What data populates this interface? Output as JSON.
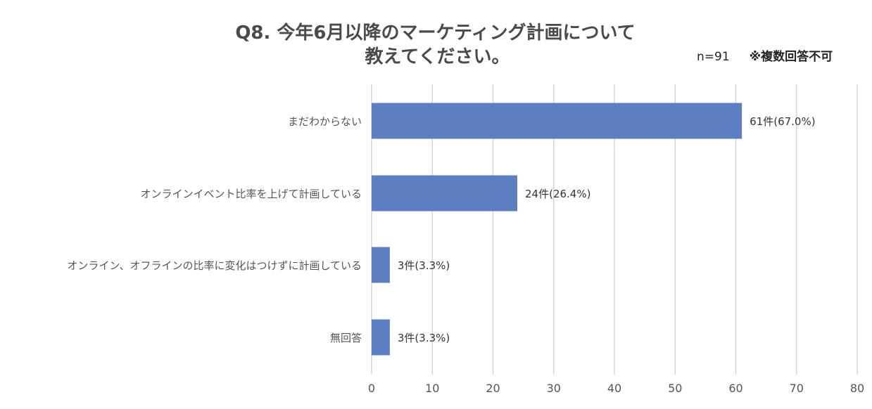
{
  "chart_data": {
    "type": "bar",
    "orientation": "horizontal",
    "title": "Q8. 今年6月以降のマーケティング計画について教えてください。",
    "title_lines": [
      "Q8. 今年6月以降のマーケティング計画について",
      "教えてください。"
    ],
    "sample_size": "n=91",
    "note": "※複数回答不可",
    "categories": [
      "まだわからない",
      "オンラインイベント比率を上げて計画している",
      "オンライン、オフラインの比率に変化はつけずに計画している",
      "無回答"
    ],
    "values": [
      61,
      24,
      3,
      3
    ],
    "data_labels": [
      "61件(67.0%)",
      "24件(26.4%)",
      "3件(3.3%)",
      "3件(3.3%)"
    ],
    "xlim": [
      0,
      80
    ],
    "x_ticks": [
      0,
      10,
      20,
      30,
      40,
      50,
      60,
      70,
      80
    ],
    "grid": true,
    "bar_color": "#5b7fc1",
    "legend": "none"
  }
}
